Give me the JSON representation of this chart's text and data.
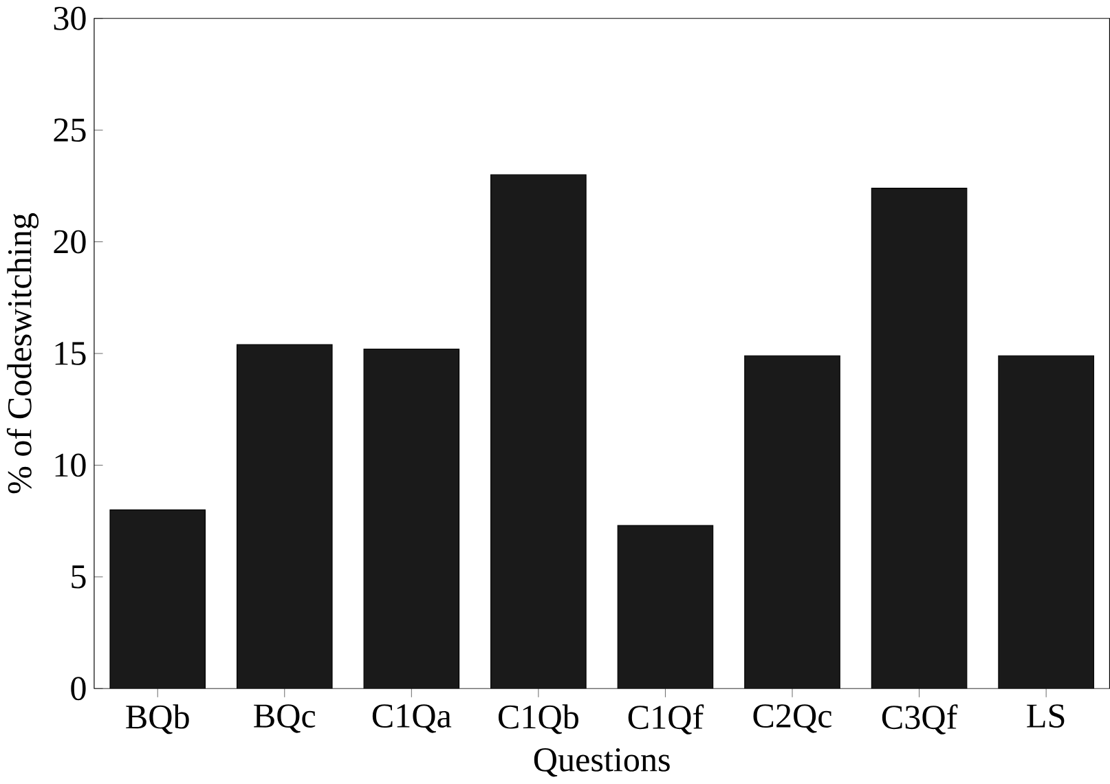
{
  "chart_data": {
    "type": "bar",
    "xlabel": "Questions",
    "ylabel": "% of Codeswitching",
    "categories": [
      "BQb",
      "BQc",
      "C1Qa",
      "C1Qb",
      "C1Qf",
      "C2Qc",
      "C3Qf",
      "LS"
    ],
    "values": [
      8,
      15.4,
      15.2,
      23,
      7.3,
      14.9,
      22.4,
      14.9
    ],
    "color": "#1a1a1a",
    "ylim": [
      0,
      30
    ],
    "yticks": [
      0,
      5,
      10,
      15,
      20,
      25,
      30
    ],
    "grid": false
  }
}
